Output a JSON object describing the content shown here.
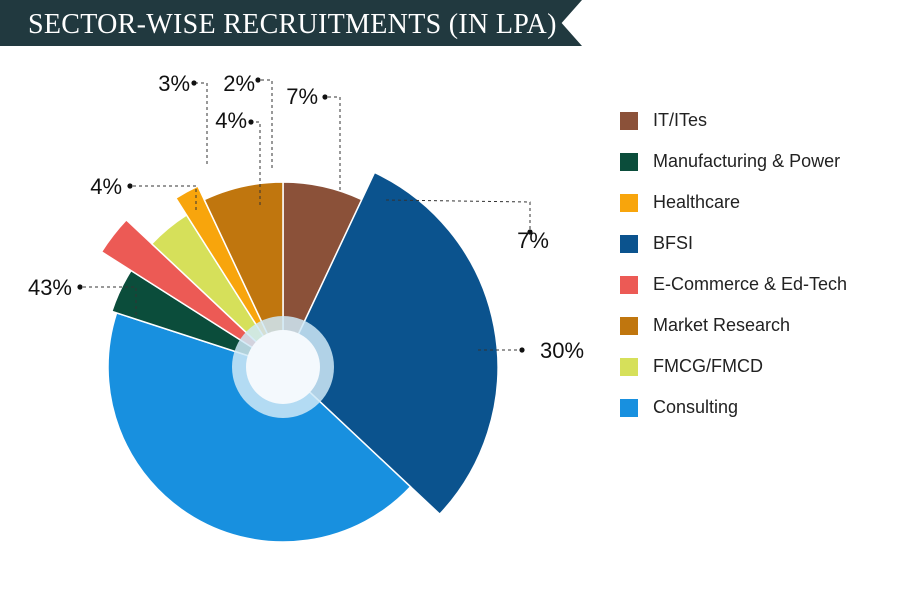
{
  "header": {
    "title": "SECTOR-WISE RECRUITMENTS (IN LPA)"
  },
  "chart_data": {
    "type": "pie",
    "title": "SECTOR-WISE RECRUITMENTS (IN LPA)",
    "legend_position": "right",
    "slices": [
      {
        "key": "it",
        "name": "IT/ITes",
        "value": 7,
        "label": "7%",
        "color": "#8b5139",
        "legend_order": 0
      },
      {
        "key": "bfsi",
        "name": "BFSI",
        "value": 30,
        "label": "30%",
        "color": "#0b538e",
        "legend_order": 3
      },
      {
        "key": "consulting",
        "name": "Consulting",
        "value": 43,
        "label": "43%",
        "color": "#1890df",
        "legend_order": 7
      },
      {
        "key": "manufacturing",
        "name": "Manufacturing & Power",
        "value": 4,
        "label": "4%",
        "color": "#0b4d3b",
        "legend_order": 1
      },
      {
        "key": "ecommerce",
        "name": "E-Commerce & Ed-Tech",
        "value": 3,
        "label": "3%",
        "color": "#ec5a55",
        "legend_order": 4
      },
      {
        "key": "fmcg",
        "name": "FMCG/FMCD",
        "value": 4,
        "label": "4%",
        "color": "#d6e05a",
        "legend_order": 6
      },
      {
        "key": "healthcare",
        "name": "Healthcare",
        "value": 2,
        "label": "2%",
        "color": "#f8a50c",
        "legend_order": 2
      },
      {
        "key": "market",
        "name": "Market Research",
        "value": 7,
        "label": "7%",
        "color": "#c0760e",
        "legend_order": 5
      }
    ]
  }
}
